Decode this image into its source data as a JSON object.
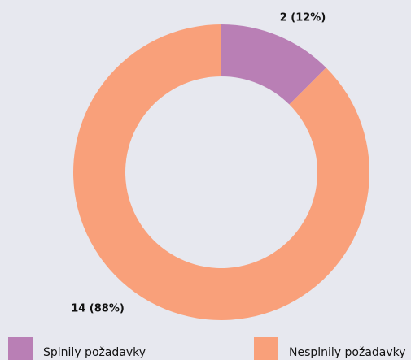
{
  "chart_data": {
    "type": "donut",
    "categories": [
      "Splnily požadavky",
      "Nesplnily požadavky"
    ],
    "values": [
      2,
      14
    ],
    "value_labels": [
      "2 (12%)",
      "14 (88%)"
    ],
    "colors": [
      "#b97fb5",
      "#f9a07a"
    ]
  }
}
